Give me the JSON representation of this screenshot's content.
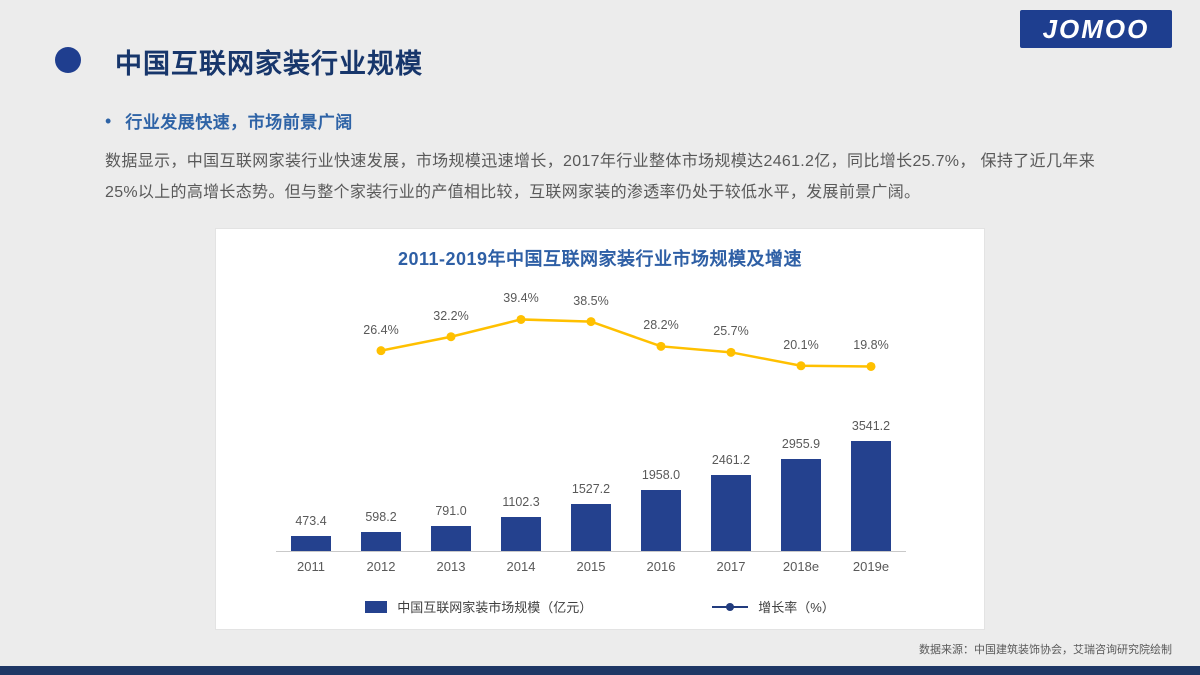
{
  "header": {
    "logo_text": "JOMOO",
    "title": "中国互联网家装行业规模",
    "subtitle": "行业发展快速，市场前景广阔"
  },
  "body": {
    "paragraph": "数据显示，中国互联网家装行业快速发展，市场规模迅速增长，2017年行业整体市场规模达2461.2亿，同比增长25.7%，  保持了近几年来25%以上的高增长态势。但与整个家装行业的产值相比较，互联网家装的渗透率仍处于较低水平，发展前景广阔。"
  },
  "chart_data": {
    "type": "combo-bar-line",
    "title": "2011-2019年中国互联网家装行业市场规模及增速",
    "categories": [
      "2011",
      "2012",
      "2013",
      "2014",
      "2015",
      "2016",
      "2017",
      "2018e",
      "2019e"
    ],
    "series": [
      {
        "name": "中国互联网家装市场规模（亿元）",
        "type": "bar",
        "color": "#24418E",
        "values": [
          473.4,
          598.2,
          791.0,
          1102.3,
          1527.2,
          1958.0,
          2461.2,
          2955.9,
          3541.2
        ]
      },
      {
        "name": "增长率（%）",
        "type": "line",
        "color": "#FFC000",
        "legend_marker_color": "#223C7E",
        "values": [
          null,
          26.4,
          32.2,
          39.4,
          38.5,
          28.2,
          25.7,
          20.1,
          19.8
        ]
      }
    ],
    "grid": false,
    "legend_position": "bottom"
  },
  "footer": {
    "source": "数据来源：中国建筑装饰协会，艾瑞咨询研究院绘制"
  },
  "colors": {
    "accent_navy": "#1E3E8F",
    "title_navy": "#17366B",
    "subtitle_blue": "#2E63A6",
    "chart_title_blue": "#2E5FA5",
    "bar_blue": "#24418E",
    "line_gold": "#FFC000",
    "body_gray": "#595959",
    "background": "#ECECEC",
    "footer_bar": "#1E3765"
  }
}
